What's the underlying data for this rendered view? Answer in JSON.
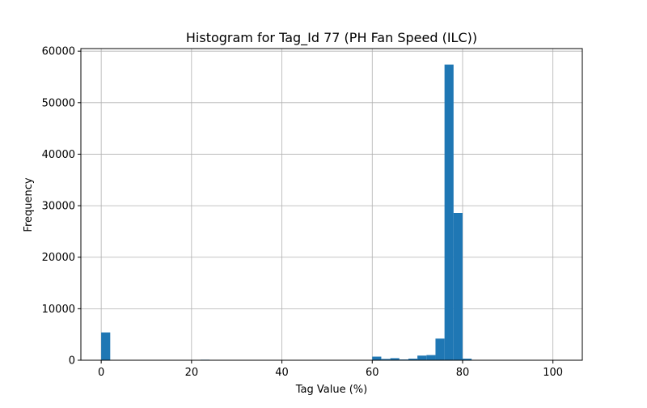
{
  "chart_data": {
    "type": "bar",
    "title": "Histogram for Tag_Id 77 (PH Fan Speed (ILC))",
    "xlabel": "Tag Value (%)",
    "ylabel": "Frequency",
    "xlim": [
      -4.5,
      106.5
    ],
    "ylim": [
      0,
      60500
    ],
    "xticks": [
      0,
      20,
      40,
      60,
      80,
      100
    ],
    "yticks": [
      0,
      10000,
      20000,
      30000,
      40000,
      50000,
      60000
    ],
    "grid": true,
    "bar_color": "#1f77b4",
    "bins": [
      {
        "x0": 0.0,
        "x1": 2.0,
        "count": 5400
      },
      {
        "x0": 22.0,
        "x1": 24.0,
        "count": 100
      },
      {
        "x0": 60.0,
        "x1": 62.0,
        "count": 700
      },
      {
        "x0": 62.0,
        "x1": 64.0,
        "count": 250
      },
      {
        "x0": 64.0,
        "x1": 66.0,
        "count": 400
      },
      {
        "x0": 66.0,
        "x1": 68.0,
        "count": 150
      },
      {
        "x0": 68.0,
        "x1": 70.0,
        "count": 300
      },
      {
        "x0": 70.0,
        "x1": 72.0,
        "count": 900
      },
      {
        "x0": 72.0,
        "x1": 74.0,
        "count": 1000
      },
      {
        "x0": 74.0,
        "x1": 76.0,
        "count": 4200
      },
      {
        "x0": 76.0,
        "x1": 78.0,
        "count": 57400
      },
      {
        "x0": 78.0,
        "x1": 80.0,
        "count": 28600
      },
      {
        "x0": 80.0,
        "x1": 82.0,
        "count": 300
      }
    ]
  }
}
